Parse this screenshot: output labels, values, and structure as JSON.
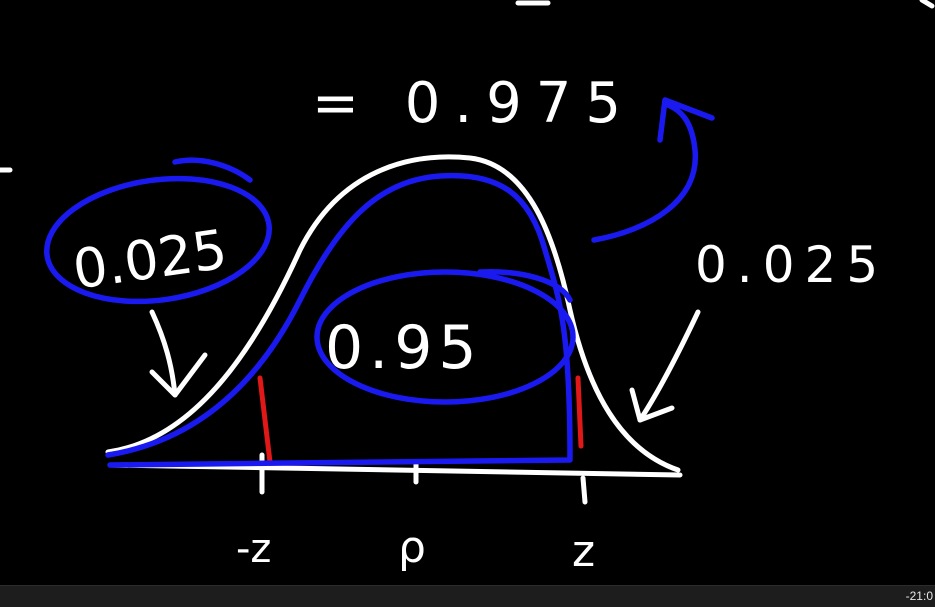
{
  "board": {
    "result_label": "= 0.975",
    "left_tail_label": "0.025",
    "right_tail_label": "0.025",
    "center_label": "0.95",
    "axis_left_label": "-z",
    "axis_mid_label": "ρ",
    "axis_right_label": "z"
  },
  "player": {
    "time_remaining": "-21:0"
  },
  "colors": {
    "background": "#000000",
    "curve": "#ffffff",
    "highlight": "#1a1af0",
    "cutoff_marks": "#e01818"
  }
}
